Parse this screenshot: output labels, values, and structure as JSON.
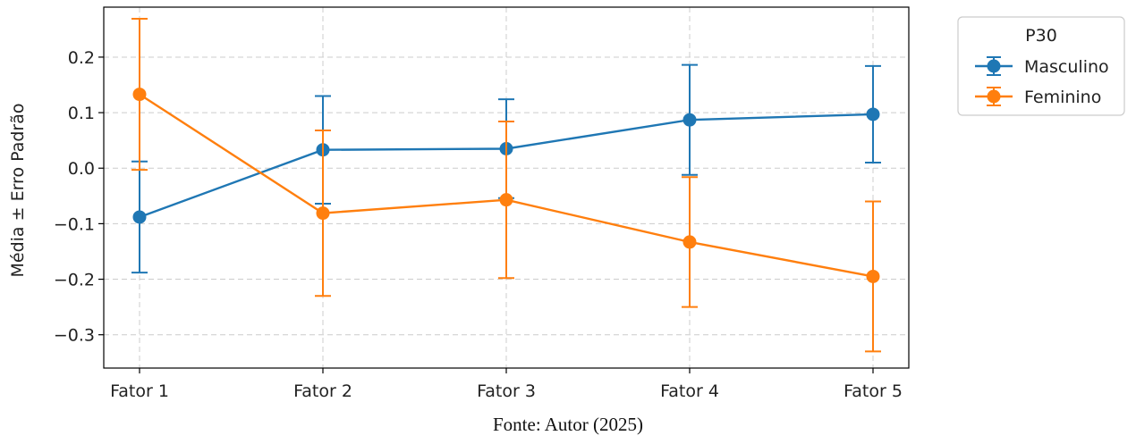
{
  "caption": "Fonte: Autor (2025)",
  "chart_data": {
    "type": "line",
    "ylabel": "Média ± Erro Padrão",
    "xlabel": "",
    "categories": [
      "Fator 1",
      "Fator 2",
      "Fator 3",
      "Fator 4",
      "Fator 5"
    ],
    "ylim": [
      -0.36,
      0.29
    ],
    "yticks": [
      0.2,
      0.1,
      0.0,
      -0.1,
      -0.2,
      -0.3
    ],
    "ytick_labels": [
      "0.2",
      "0.1",
      "0.0",
      "−0.1",
      "−0.2",
      "−0.3"
    ],
    "grid": true,
    "legend": {
      "title": "P30",
      "position": "right-outside-top"
    },
    "series": [
      {
        "name": "Masculino",
        "color": "#1f77b4",
        "values": [
          -0.088,
          0.033,
          0.035,
          0.087,
          0.097
        ],
        "errors": [
          0.1,
          0.097,
          0.089,
          0.099,
          0.087
        ]
      },
      {
        "name": "Feminino",
        "color": "#ff7f0e",
        "values": [
          0.133,
          -0.081,
          -0.057,
          -0.133,
          -0.195
        ],
        "errors": [
          0.136,
          0.149,
          0.141,
          0.117,
          0.135
        ]
      }
    ]
  }
}
